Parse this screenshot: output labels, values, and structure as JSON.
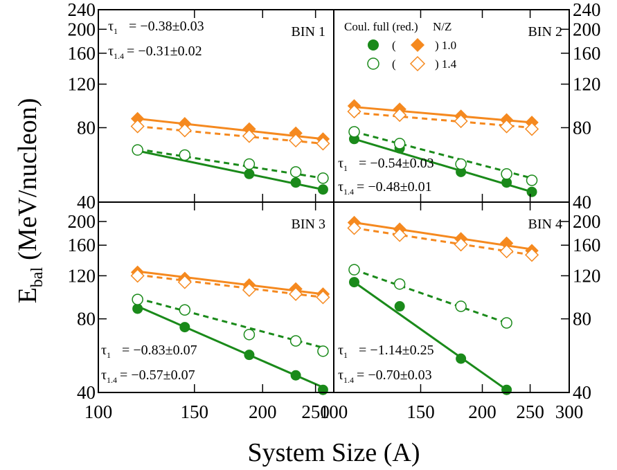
{
  "chart_data": {
    "type": "scatter",
    "layout": "2x2 panels",
    "xlabel": "System Size (A)",
    "ylabel": "E",
    "ylabel_subscript": "bal",
    "ylabel_units": "(MeV/nucleon)",
    "x_scale": "log",
    "y_scale": "log",
    "y_ticks_top": [
      "240",
      "200",
      "160",
      "120",
      "80",
      "40"
    ],
    "y_ticks_bottom": [
      "200",
      "160",
      "120",
      "80",
      "40"
    ],
    "x_ticks_left": [
      "100",
      "150",
      "200",
      "250"
    ],
    "x_ticks_right": [
      "100",
      "150",
      "200",
      "250",
      "300"
    ],
    "legend": {
      "header_left": "Coul. full (red.)",
      "header_right": "N/Z",
      "rows": [
        {
          "open_paren": "(",
          "close_text": ") 1.0",
          "filled": true
        },
        {
          "open_paren": "(",
          "close_text": ") 1.4",
          "filled": false
        }
      ]
    },
    "colors": {
      "coul_full": "#1a8a1a",
      "coul_red": "#f5891f"
    },
    "panels": [
      {
        "label": "BIN 1",
        "xlim": [
          100,
          270
        ],
        "ylim": [
          40,
          240
        ],
        "tau1": "= −0.38±0.03",
        "tau14": "= −0.31±0.02",
        "fits": {
          "full_nz10": [
            64.5,
            45
          ],
          "full_nz14": [
            65.5,
            50
          ],
          "red_nz10": [
            87,
            72
          ],
          "red_nz14": [
            81,
            69
          ]
        },
        "series": [
          {
            "name": "Coul. full N/Z 1.0",
            "style": "filled-circle",
            "x": [
              118,
              144,
              189,
              230,
              258
            ],
            "y": [
              65,
              62,
              52,
              48,
              45
            ]
          },
          {
            "name": "Coul. full N/Z 1.4",
            "style": "open-circle",
            "x": [
              118,
              144,
              189,
              230,
              258
            ],
            "y": [
              65,
              62,
              57,
              53,
              50
            ]
          },
          {
            "name": "Coul. red. N/Z 1.0",
            "style": "filled-diamond",
            "x": [
              118,
              144,
              189,
              230,
              258
            ],
            "y": [
              87,
              83,
              79,
              76,
              72
            ]
          },
          {
            "name": "Coul. red. N/Z 1.4",
            "style": "open-diamond",
            "x": [
              118,
              144,
              189,
              230,
              258
            ],
            "y": [
              81,
              78,
              74,
              71,
              69
            ]
          }
        ]
      },
      {
        "label": "BIN 2",
        "xlim": [
          100,
          300
        ],
        "ylim": [
          40,
          240
        ],
        "tau1": "= −0.54±0.03",
        "tau14": "= −0.48±0.01",
        "fits": {
          "full_nz10": [
            72,
            44
          ],
          "full_nz14": [
            77,
            50
          ],
          "red_nz10": [
            97,
            84
          ],
          "red_nz14": [
            92,
            80
          ]
        },
        "series": [
          {
            "name": "Coul. full N/Z 1.0",
            "style": "filled-circle",
            "x": [
              110,
              136,
              181,
              224,
              252
            ],
            "y": [
              72,
              66,
              53,
              48,
              44
            ]
          },
          {
            "name": "Coul. full N/Z 1.4",
            "style": "open-circle",
            "x": [
              110,
              136,
              181,
              224,
              252
            ],
            "y": [
              77,
              69,
              57,
              52,
              49
            ]
          },
          {
            "name": "Coul. red. N/Z 1.0",
            "style": "filled-diamond",
            "x": [
              110,
              136,
              181,
              224,
              252
            ],
            "y": [
              98,
              95,
              89,
              86,
              84
            ]
          },
          {
            "name": "Coul. red. N/Z 1.4",
            "style": "open-diamond",
            "x": [
              110,
              136,
              181,
              224,
              252
            ],
            "y": [
              93,
              90,
              85,
              81,
              79
            ]
          }
        ]
      },
      {
        "label": "BIN 3",
        "xlim": [
          100,
          270
        ],
        "ylim": [
          40,
          240
        ],
        "tau1": "= −0.83±0.07",
        "tau14": "= −0.57±0.07",
        "fits": {
          "full_nz10": [
            90,
            42
          ],
          "full_nz14": [
            97,
            61
          ],
          "red_nz10": [
            125,
            101
          ],
          "red_nz14": [
            121,
            98
          ]
        },
        "series": [
          {
            "name": "Coul. full N/Z 1.0",
            "style": "filled-circle",
            "x": [
              118,
              144,
              189,
              230,
              258
            ],
            "y": [
              88,
              74,
              57,
              47,
              41
            ]
          },
          {
            "name": "Coul. full N/Z 1.4",
            "style": "open-circle",
            "x": [
              118,
              144,
              189,
              230,
              258
            ],
            "y": [
              96,
              87,
              69,
              65,
              59
            ]
          },
          {
            "name": "Coul. red. N/Z 1.0",
            "style": "filled-diamond",
            "x": [
              118,
              144,
              189,
              230,
              258
            ],
            "y": [
              124,
              117,
              110,
              106,
              101
            ]
          },
          {
            "name": "Coul. red. N/Z 1.4",
            "style": "open-diamond",
            "x": [
              118,
              144,
              189,
              230,
              258
            ],
            "y": [
              120,
              113,
              105,
              101,
              98
            ]
          }
        ]
      },
      {
        "label": "BIN 4",
        "xlim": [
          100,
          300
        ],
        "ylim": [
          40,
          240
        ],
        "tau1": "= −1.14±0.25",
        "tau14": "= −0.70±0.03",
        "fits": {
          "full_nz10": [
            113,
            41
          ],
          "full_nz14": [
            127,
            77
          ],
          "red_nz10": [
            198,
            154
          ],
          "red_nz14": [
            188,
            146
          ]
        },
        "series": [
          {
            "name": "Coul. full N/Z 1.0",
            "style": "filled-circle",
            "x": [
              110,
              136,
              181,
              224
            ],
            "y": [
              113,
              90,
              55,
              41
            ]
          },
          {
            "name": "Coul. full N/Z 1.4",
            "style": "open-circle",
            "x": [
              110,
              136,
              181,
              224
            ],
            "y": [
              127,
              111,
              90,
              77
            ]
          },
          {
            "name": "Coul. red. N/Z 1.0",
            "style": "filled-diamond",
            "x": [
              110,
              136,
              181,
              224,
              252
            ],
            "y": [
              198,
              186,
              170,
              163,
              152
            ]
          },
          {
            "name": "Coul. red. N/Z 1.4",
            "style": "open-diamond",
            "x": [
              110,
              136,
              181,
              224,
              252
            ],
            "y": [
              188,
              176,
              161,
              151,
              146
            ]
          }
        ]
      }
    ]
  }
}
